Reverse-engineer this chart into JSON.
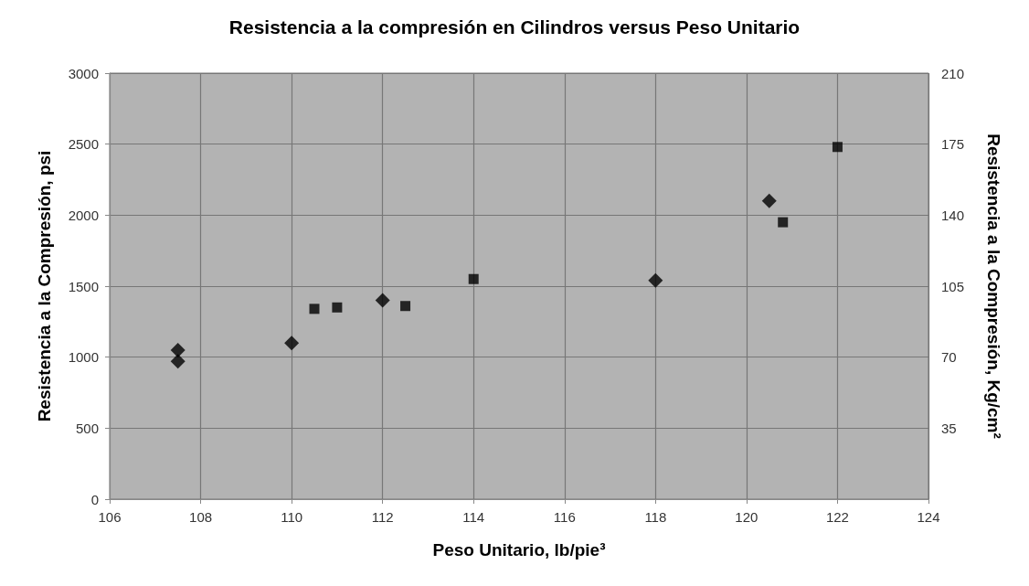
{
  "chart_data": {
    "type": "scatter",
    "title": "Resistencia a la compresión en Cilindros versus Peso Unitario",
    "xlabel": "Peso Unitario, lb/pie³",
    "ylabel": "Resistencia a la Compresión, psi",
    "y2label": "Resistencia a la Compresión, Kg/cm²",
    "xlim": [
      106,
      124
    ],
    "xticks": [
      106,
      108,
      110,
      112,
      114,
      116,
      118,
      120,
      122,
      124
    ],
    "ylim": [
      0,
      3000
    ],
    "yticks": [
      0,
      500,
      1000,
      1500,
      2000,
      2500,
      3000
    ],
    "y2lim": [
      0,
      210
    ],
    "y2ticks": [
      35,
      70,
      105,
      140,
      175,
      210
    ],
    "grid": true,
    "series": [
      {
        "color": "#000000",
        "marker": "diamond",
        "x": [
          107.5,
          107.5,
          110,
          112,
          118,
          120.5
        ],
        "values": [
          1050,
          970,
          1100,
          1400,
          1540,
          2100
        ]
      },
      {
        "color": "#000000",
        "marker": "square",
        "x": [
          110.5,
          111,
          112.5,
          114,
          120.8,
          122
        ],
        "values": [
          1340,
          1350,
          1360,
          1550,
          1950,
          2480
        ]
      }
    ]
  }
}
